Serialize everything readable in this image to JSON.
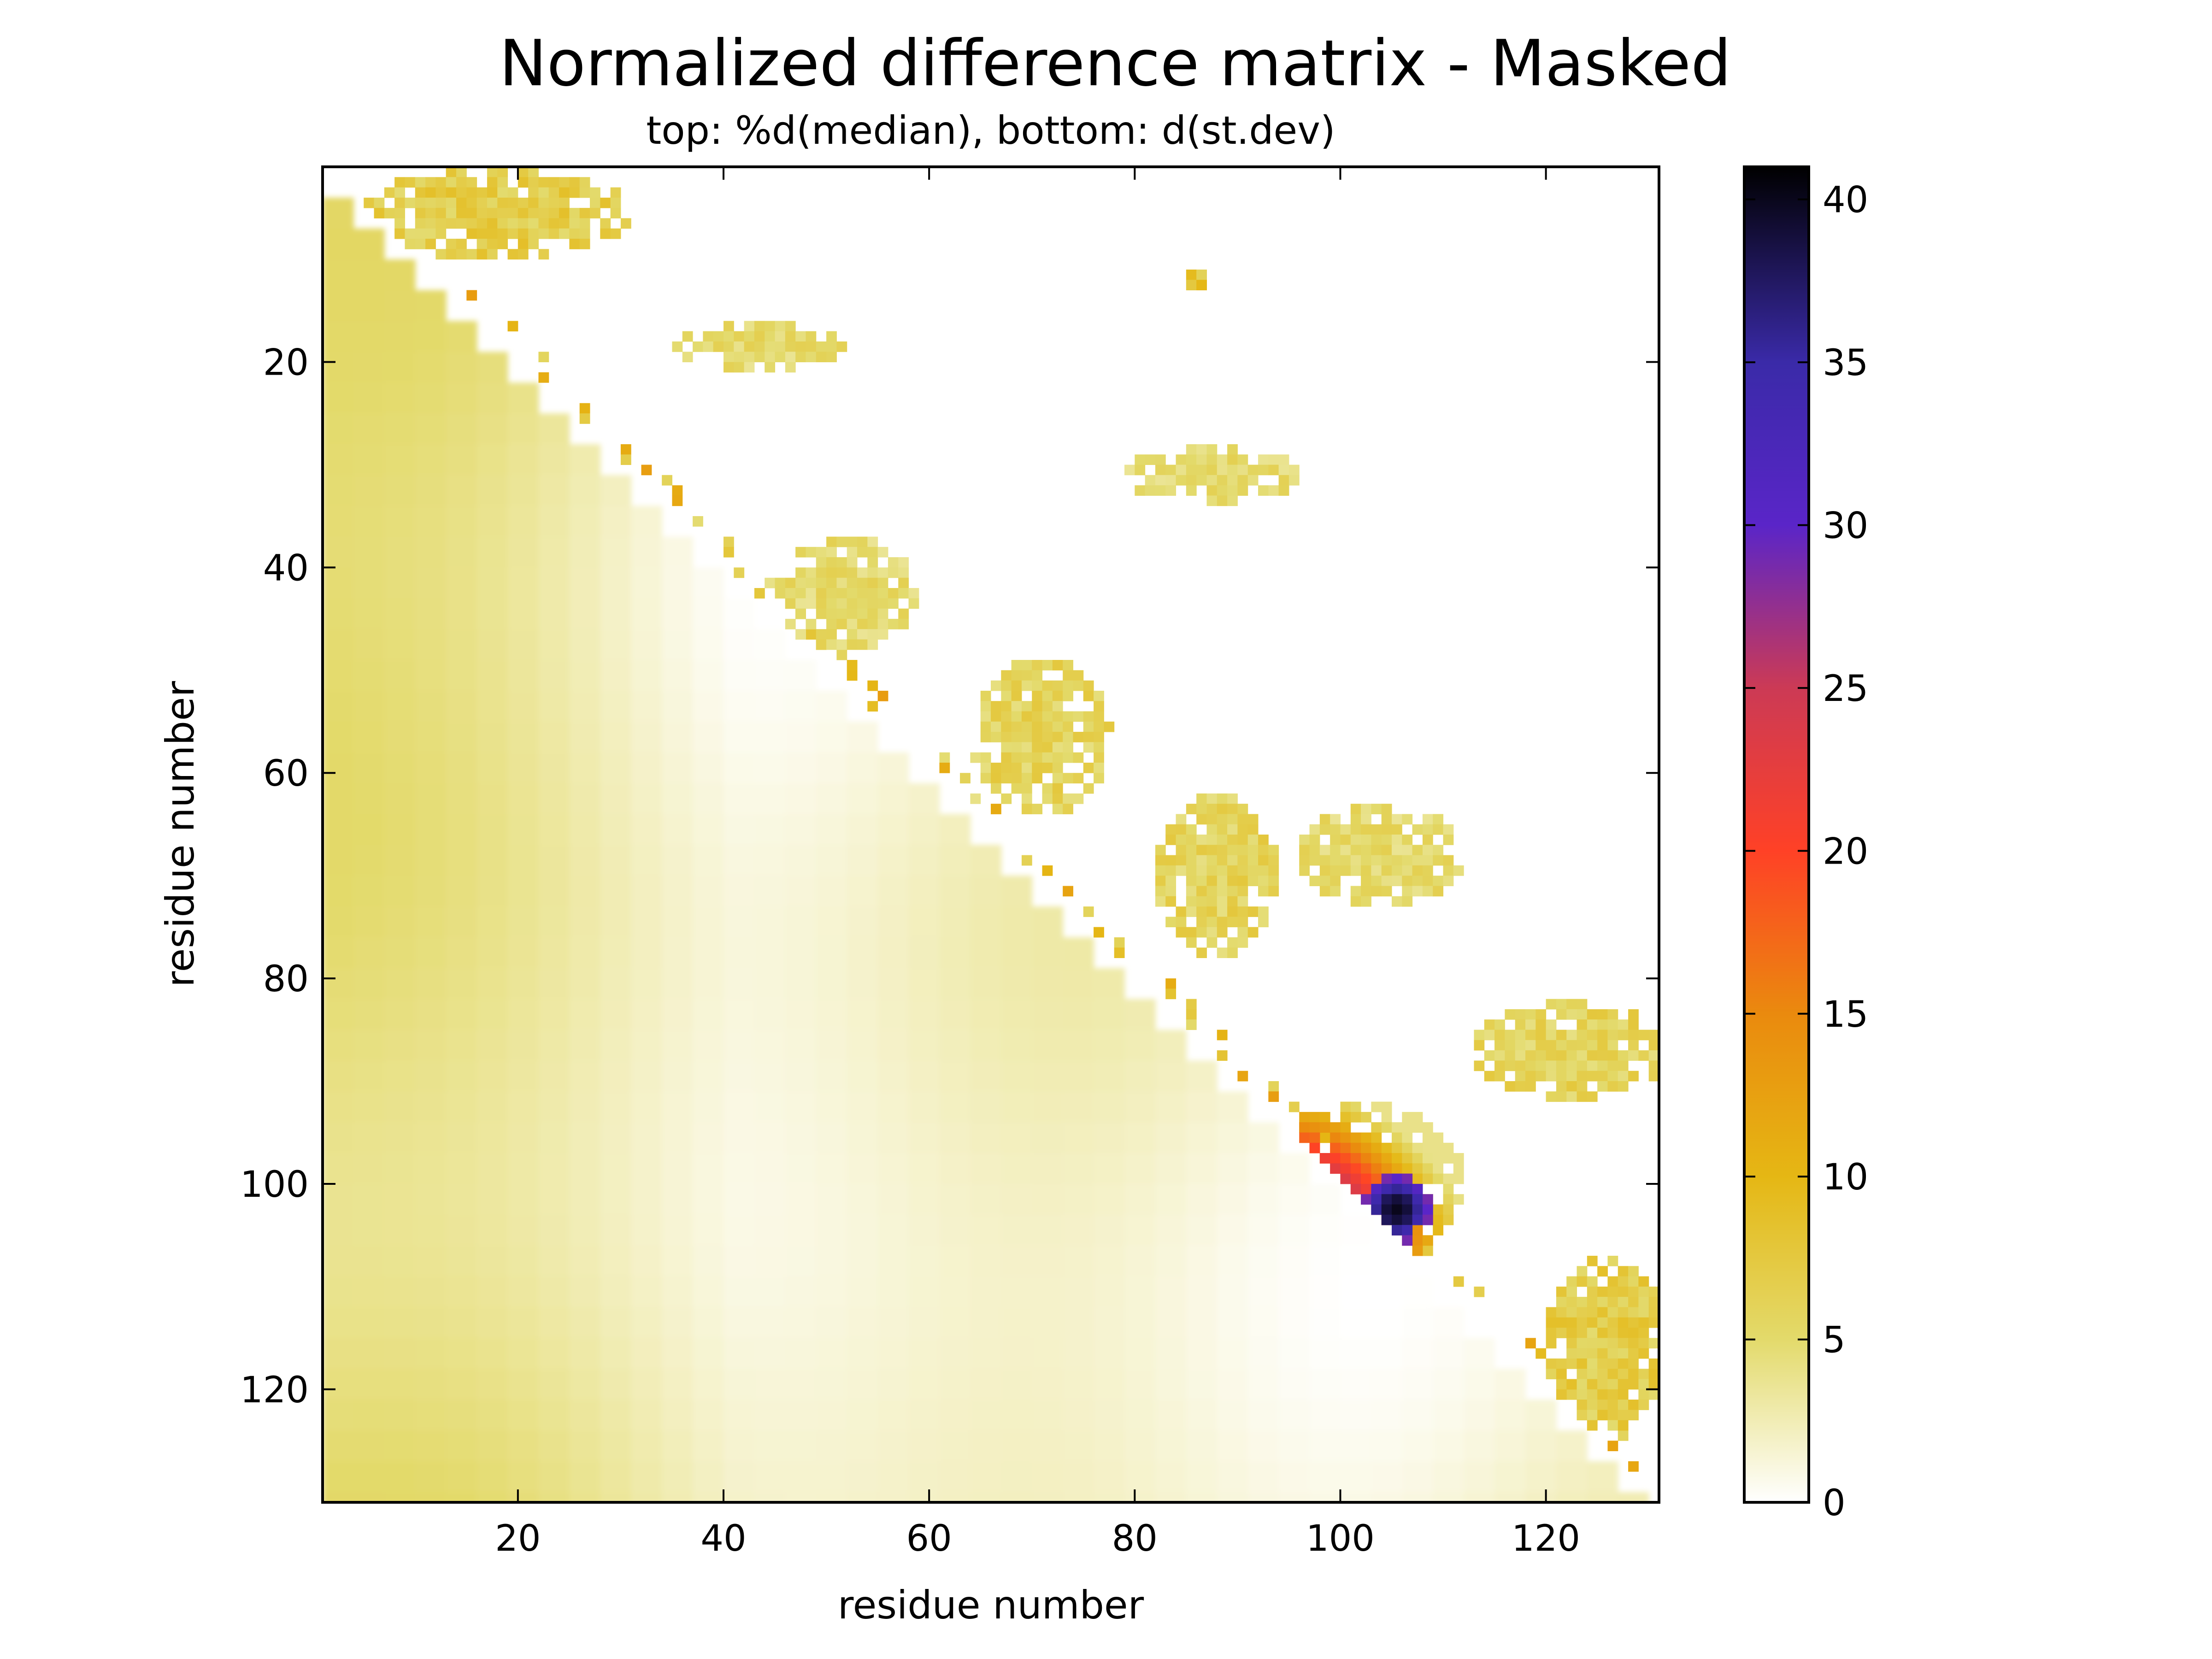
{
  "chart_data": {
    "type": "heatmap",
    "title": "Normalized difference matrix - Masked",
    "subtitle": "top: %d(median),  bottom: d(st.dev)",
    "xlabel": "residue number",
    "ylabel": "residue number",
    "xlim": [
      1,
      131
    ],
    "ylim": [
      131,
      1
    ],
    "x_ticks": [
      20,
      40,
      60,
      80,
      100,
      120
    ],
    "y_ticks": [
      20,
      40,
      60,
      80,
      100,
      120
    ],
    "colorbar": {
      "range": [
        0,
        41
      ],
      "ticks": [
        0,
        5,
        10,
        15,
        20,
        25,
        30,
        35,
        40
      ],
      "stops": [
        {
          "value": 0,
          "color": "#ffffff"
        },
        {
          "value": 5,
          "color": "#e3da6b"
        },
        {
          "value": 10,
          "color": "#e5b714"
        },
        {
          "value": 15,
          "color": "#ea8a0e"
        },
        {
          "value": 20,
          "color": "#ff4126"
        },
        {
          "value": 25,
          "color": "#cc3a55"
        },
        {
          "value": 30,
          "color": "#5a25c8"
        },
        {
          "value": 35,
          "color": "#3a2aa8"
        },
        {
          "value": 41,
          "color": "#000000"
        }
      ]
    },
    "upper_triangle_clusters": [
      {
        "label": "d(median) region",
        "residue_x": [
          4,
          30
        ],
        "residue_y": [
          1,
          9
        ],
        "value": 8
      },
      {
        "label": "d(median) region",
        "residue_x": [
          85,
          86
        ],
        "residue_y": [
          11,
          12
        ],
        "value": 9
      },
      {
        "label": "d(median) region",
        "residue_x": [
          35,
          51
        ],
        "residue_y": [
          16,
          20
        ],
        "value": 6
      },
      {
        "label": "d(median) region",
        "residue_x": [
          79,
          95
        ],
        "residue_y": [
          28,
          33
        ],
        "value": 6
      },
      {
        "label": "d(median) region",
        "residue_x": [
          45,
          58
        ],
        "residue_y": [
          37,
          47
        ],
        "value": 6
      },
      {
        "label": "d(median) region",
        "residue_x": [
          64,
          77
        ],
        "residue_y": [
          49,
          63
        ],
        "value": 7
      },
      {
        "label": "d(median) region",
        "residue_x": [
          82,
          93
        ],
        "residue_y": [
          62,
          77
        ],
        "value": 7
      },
      {
        "label": "d(median) region",
        "residue_x": [
          96,
          111
        ],
        "residue_y": [
          63,
          72
        ],
        "value": 6
      },
      {
        "label": "d(median) region",
        "residue_x": [
          113,
          131
        ],
        "residue_y": [
          82,
          91
        ],
        "value": 7
      },
      {
        "label": "d(median) region",
        "residue_x": [
          91,
          111
        ],
        "residue_y": [
          92,
          107
        ],
        "value": 18
      },
      {
        "label": "d(median) peak",
        "residue_x": [
          102,
          108
        ],
        "residue_y": [
          99,
          105
        ],
        "value": 40
      },
      {
        "label": "d(median) region",
        "residue_x": [
          120,
          131
        ],
        "residue_y": [
          107,
          123
        ],
        "value": 8
      }
    ],
    "lower_triangle_value_range": [
      0,
      6
    ]
  }
}
